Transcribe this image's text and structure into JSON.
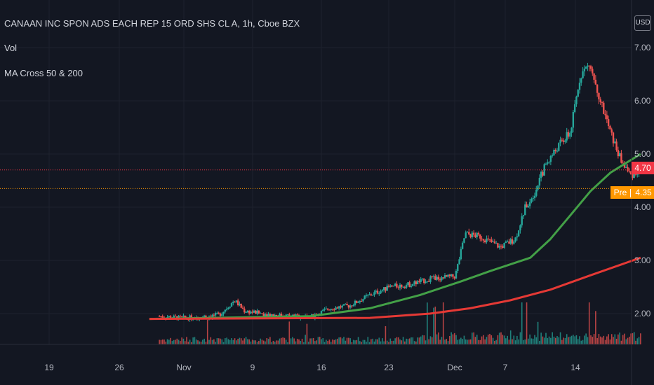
{
  "legend": {
    "symbol": "CANAAN INC SPON ADS EACH REP 15 ORD SHS CL A, 1h, Cboe BZX",
    "volume": "Vol",
    "ma": "MA Cross 50 & 200"
  },
  "currency": "USD",
  "price_tags": {
    "last": "4.70",
    "pre_label": "Pre",
    "pre": "4.35"
  },
  "colors": {
    "background": "#131722",
    "up": "#26a69a",
    "down": "#ef5350",
    "ma_fast": "#43a047",
    "ma_slow": "#e53935",
    "last_tag": "#f23645",
    "pre_tag": "#ff9800"
  },
  "chart_data": {
    "type": "candlestick",
    "title": "CANAAN INC SPON ADS EACH REP 15 ORD SHS CL A, 1h, Cboe BZX",
    "x_ticks": [
      "19",
      "26",
      "Nov",
      "9",
      "16",
      "23",
      "Dec",
      "7",
      "14"
    ],
    "y_ticks": [
      "2.00",
      "3.00",
      "4.00",
      "5.00",
      "6.00",
      "7.00"
    ],
    "ylim": [
      1.25,
      7.6
    ],
    "grid": true,
    "series": [
      {
        "name": "Price",
        "points": [
          {
            "x": 15.0,
            "y": 1.95
          },
          {
            "x": 17.0,
            "y": 1.92
          },
          {
            "x": 19.0,
            "y": 1.93
          },
          {
            "x": 21.0,
            "y": 1.98
          },
          {
            "x": 22.5,
            "y": 2.25
          },
          {
            "x": 23.5,
            "y": 2.05
          },
          {
            "x": 26.0,
            "y": 1.98
          },
          {
            "x": 28.0,
            "y": 1.96
          },
          {
            "x": 30.0,
            "y": 1.93
          },
          {
            "x": 32.0,
            "y": 2.1
          },
          {
            "x": 34.0,
            "y": 2.15
          },
          {
            "x": 36.0,
            "y": 2.35
          },
          {
            "x": 38.0,
            "y": 2.5
          },
          {
            "x": 40.0,
            "y": 2.55
          },
          {
            "x": 42.0,
            "y": 2.65
          },
          {
            "x": 44.5,
            "y": 2.7
          },
          {
            "x": 45.5,
            "y": 3.5
          },
          {
            "x": 47.0,
            "y": 3.45
          },
          {
            "x": 49.0,
            "y": 3.25
          },
          {
            "x": 50.5,
            "y": 3.4
          },
          {
            "x": 51.5,
            "y": 4.0
          },
          {
            "x": 52.5,
            "y": 4.3
          },
          {
            "x": 53.5,
            "y": 4.8
          },
          {
            "x": 55.0,
            "y": 5.2
          },
          {
            "x": 56.0,
            "y": 5.4
          },
          {
            "x": 57.0,
            "y": 6.5
          },
          {
            "x": 58.0,
            "y": 6.7
          },
          {
            "x": 59.0,
            "y": 6.0
          },
          {
            "x": 60.0,
            "y": 5.4
          },
          {
            "x": 61.0,
            "y": 4.9
          },
          {
            "x": 62.0,
            "y": 4.6
          },
          {
            "x": 63.0,
            "y": 4.7
          }
        ]
      },
      {
        "name": "MA 50",
        "points": [
          {
            "x": 14.0,
            "y": 1.9
          },
          {
            "x": 30.0,
            "y": 1.95
          },
          {
            "x": 36.0,
            "y": 2.1
          },
          {
            "x": 41.0,
            "y": 2.35
          },
          {
            "x": 45.0,
            "y": 2.6
          },
          {
            "x": 48.0,
            "y": 2.8
          },
          {
            "x": 52.0,
            "y": 3.05
          },
          {
            "x": 54.0,
            "y": 3.4
          },
          {
            "x": 56.0,
            "y": 3.85
          },
          {
            "x": 58.0,
            "y": 4.3
          },
          {
            "x": 60.0,
            "y": 4.65
          },
          {
            "x": 63.0,
            "y": 5.0
          }
        ]
      },
      {
        "name": "MA 200",
        "points": [
          {
            "x": 14.0,
            "y": 1.9
          },
          {
            "x": 36.0,
            "y": 1.92
          },
          {
            "x": 42.0,
            "y": 2.0
          },
          {
            "x": 46.0,
            "y": 2.1
          },
          {
            "x": 50.0,
            "y": 2.25
          },
          {
            "x": 54.0,
            "y": 2.45
          },
          {
            "x": 58.0,
            "y": 2.72
          },
          {
            "x": 63.0,
            "y": 3.05
          }
        ]
      }
    ],
    "price_lines": [
      4.7,
      4.35
    ]
  }
}
